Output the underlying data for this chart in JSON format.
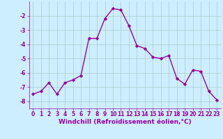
{
  "x": [
    0,
    1,
    2,
    3,
    4,
    5,
    6,
    7,
    8,
    9,
    10,
    11,
    12,
    13,
    14,
    15,
    16,
    17,
    18,
    19,
    20,
    21,
    22,
    23
  ],
  "y": [
    -7.5,
    -7.3,
    -6.7,
    -7.5,
    -6.7,
    -6.5,
    -6.2,
    -3.6,
    -3.6,
    -2.2,
    -1.5,
    -1.6,
    -2.7,
    -4.1,
    -4.3,
    -4.9,
    -5.0,
    -4.8,
    -6.4,
    -6.8,
    -5.8,
    -5.9,
    -7.3,
    -7.9
  ],
  "line_color": "#990099",
  "marker": "D",
  "marker_size": 2.2,
  "bg_color": "#cceeff",
  "grid_color": "#aacccc",
  "xlabel": "Windchill (Refroidissement éolien,°C)",
  "xlabel_color": "#990099",
  "xlim": [
    -0.5,
    23.5
  ],
  "ylim": [
    -8.5,
    -1.0
  ],
  "yticks": [
    -8,
    -7,
    -6,
    -5,
    -4,
    -3,
    -2
  ],
  "xticks": [
    0,
    1,
    2,
    3,
    4,
    5,
    6,
    7,
    8,
    9,
    10,
    11,
    12,
    13,
    14,
    15,
    16,
    17,
    18,
    19,
    20,
    21,
    22,
    23
  ],
  "tick_labelsize": 5.5,
  "xlabel_fontsize": 6.5,
  "linewidth": 1.0
}
